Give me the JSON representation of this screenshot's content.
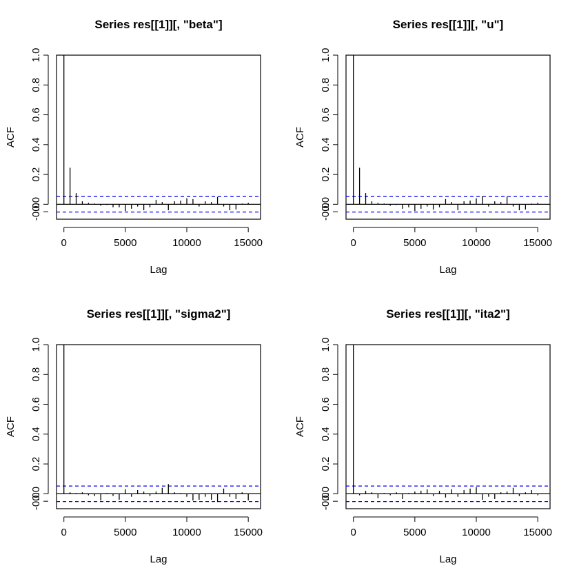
{
  "chart_data": [
    {
      "type": "bar",
      "title": "Series  res[[1]][, \"beta\"]",
      "xlabel": "Lag",
      "ylabel": "ACF",
      "xlim": [
        -600,
        16000
      ],
      "ylim": [
        -0.1,
        1.0
      ],
      "xticks": [
        "0",
        "5000",
        "10000",
        "15000"
      ],
      "yticks": [
        "-0.0",
        "0.0",
        "0.2",
        "0.4",
        "0.6",
        "0.8",
        "1.0"
      ],
      "conf_limit": 0.052,
      "lag_step": 500,
      "values": [
        1.0,
        0.245,
        0.075,
        0.02,
        0.01,
        0.005,
        -0.01,
        -0.005,
        -0.02,
        -0.02,
        -0.045,
        -0.03,
        -0.015,
        -0.04,
        -0.02,
        0.03,
        0.015,
        -0.04,
        0.02,
        0.025,
        0.04,
        0.035,
        -0.015,
        0.02,
        0.015,
        0.05,
        -0.015,
        -0.04,
        -0.035,
        0.005,
        0.01
      ]
    },
    {
      "type": "bar",
      "title": "Series  res[[1]][, \"u\"]",
      "xlabel": "Lag",
      "ylabel": "ACF",
      "xlim": [
        -600,
        16000
      ],
      "ylim": [
        -0.1,
        1.0
      ],
      "xticks": [
        "0",
        "5000",
        "10000",
        "15000"
      ],
      "yticks": [
        "-0.0",
        "0.0",
        "0.2",
        "0.4",
        "0.6",
        "0.8",
        "1.0"
      ],
      "conf_limit": 0.052,
      "lag_step": 500,
      "values": [
        1.0,
        0.245,
        0.075,
        0.02,
        0.01,
        0.005,
        -0.01,
        -0.005,
        -0.03,
        -0.02,
        -0.045,
        -0.03,
        -0.015,
        -0.035,
        -0.02,
        0.035,
        0.015,
        -0.04,
        0.02,
        0.025,
        0.04,
        0.055,
        -0.015,
        0.02,
        0.015,
        0.05,
        -0.015,
        -0.04,
        -0.035,
        0.005,
        0.01
      ]
    },
    {
      "type": "bar",
      "title": "Series  res[[1]][, \"sigma2\"]",
      "xlabel": "Lag",
      "ylabel": "ACF",
      "xlim": [
        -600,
        16000
      ],
      "ylim": [
        -0.1,
        1.0
      ],
      "xticks": [
        "0",
        "5000",
        "10000",
        "15000"
      ],
      "yticks": [
        "-0.0",
        "0.0",
        "0.2",
        "0.4",
        "0.6",
        "0.8",
        "1.0"
      ],
      "conf_limit": 0.052,
      "lag_step": 500,
      "values": [
        1.0,
        0.01,
        0.005,
        0.01,
        -0.01,
        -0.015,
        -0.045,
        0.005,
        -0.015,
        -0.04,
        0.03,
        -0.02,
        0.025,
        0.015,
        -0.015,
        0.015,
        0.04,
        0.065,
        0.01,
        0.005,
        -0.02,
        -0.045,
        -0.04,
        -0.02,
        -0.04,
        -0.055,
        0.035,
        -0.02,
        -0.035,
        0.01,
        -0.045
      ]
    },
    {
      "type": "bar",
      "title": "Series  res[[1]][, \"ita2\"]",
      "xlabel": "Lag",
      "ylabel": "ACF",
      "xlim": [
        -600,
        16000
      ],
      "ylim": [
        -0.1,
        1.0
      ],
      "xticks": [
        "0",
        "5000",
        "10000",
        "15000"
      ],
      "yticks": [
        "-0.0",
        "0.0",
        "0.2",
        "0.4",
        "0.6",
        "0.8",
        "1.0"
      ],
      "conf_limit": 0.052,
      "lag_step": 500,
      "values": [
        1.0,
        -0.01,
        0.02,
        0.01,
        -0.03,
        0.005,
        -0.01,
        0.01,
        -0.035,
        0.005,
        0.015,
        0.02,
        0.03,
        -0.015,
        0.02,
        -0.025,
        0.03,
        -0.02,
        0.025,
        0.035,
        0.045,
        -0.04,
        -0.02,
        -0.035,
        0.01,
        0.015,
        0.04,
        -0.015,
        0.01,
        0.025,
        -0.01
      ]
    }
  ]
}
